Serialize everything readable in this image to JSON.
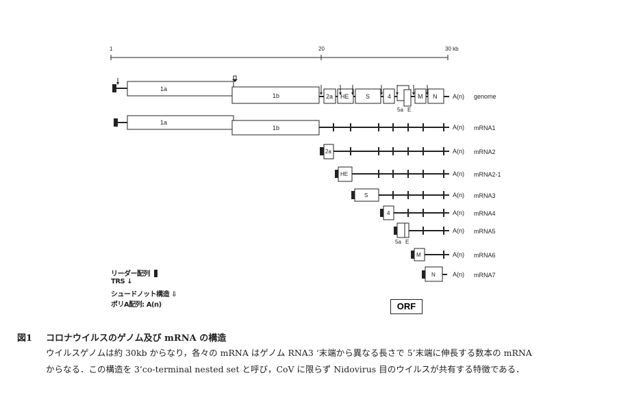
{
  "scale": {
    "ticks": [
      "1",
      "20",
      "30 kb"
    ]
  },
  "genome": {
    "label": "genome",
    "orfs": [
      "1a",
      "1b",
      "2a",
      "HE",
      "S",
      "4",
      "5a",
      "E",
      "M",
      "N"
    ],
    "polyA": "A(n)"
  },
  "mrnas": [
    {
      "name": "mRNA1",
      "orfs": [
        "1a",
        "1b"
      ]
    },
    {
      "name": "mRNA2",
      "orfs": [
        "2a"
      ]
    },
    {
      "name": "mRNA2-1",
      "orfs": [
        "HE"
      ]
    },
    {
      "name": "mRNA3",
      "orfs": [
        "S"
      ]
    },
    {
      "name": "mRNA4",
      "orfs": [
        "4"
      ]
    },
    {
      "name": "mRNA5",
      "orfs": [
        "5a",
        "E"
      ]
    },
    {
      "name": "mRNA6",
      "orfs": [
        "M"
      ]
    },
    {
      "name": "mRNA7",
      "orfs": [
        "N"
      ]
    }
  ],
  "legend": {
    "leader": "リーダー配列",
    "trs": "TRS",
    "pseudoknot": "シュードノット構造",
    "polyA": "ポリA配列: A(n)"
  },
  "orf_label": "ORF",
  "caption": {
    "number": "図1",
    "title": "コロナウイルスのゲノム及び mRNA の構造",
    "line1": "ウイルスゲノムは約 30kb からなり，各々の mRNA はゲノム RNA3 ‘末端から異なる長さで 5’末端に伸長する数本の mRNA",
    "line2": "からなる．この構造を 3’co-terminal nested set と呼び，CoV に限らず Nidovirus 目のウイルスが共有する特徴である．"
  }
}
